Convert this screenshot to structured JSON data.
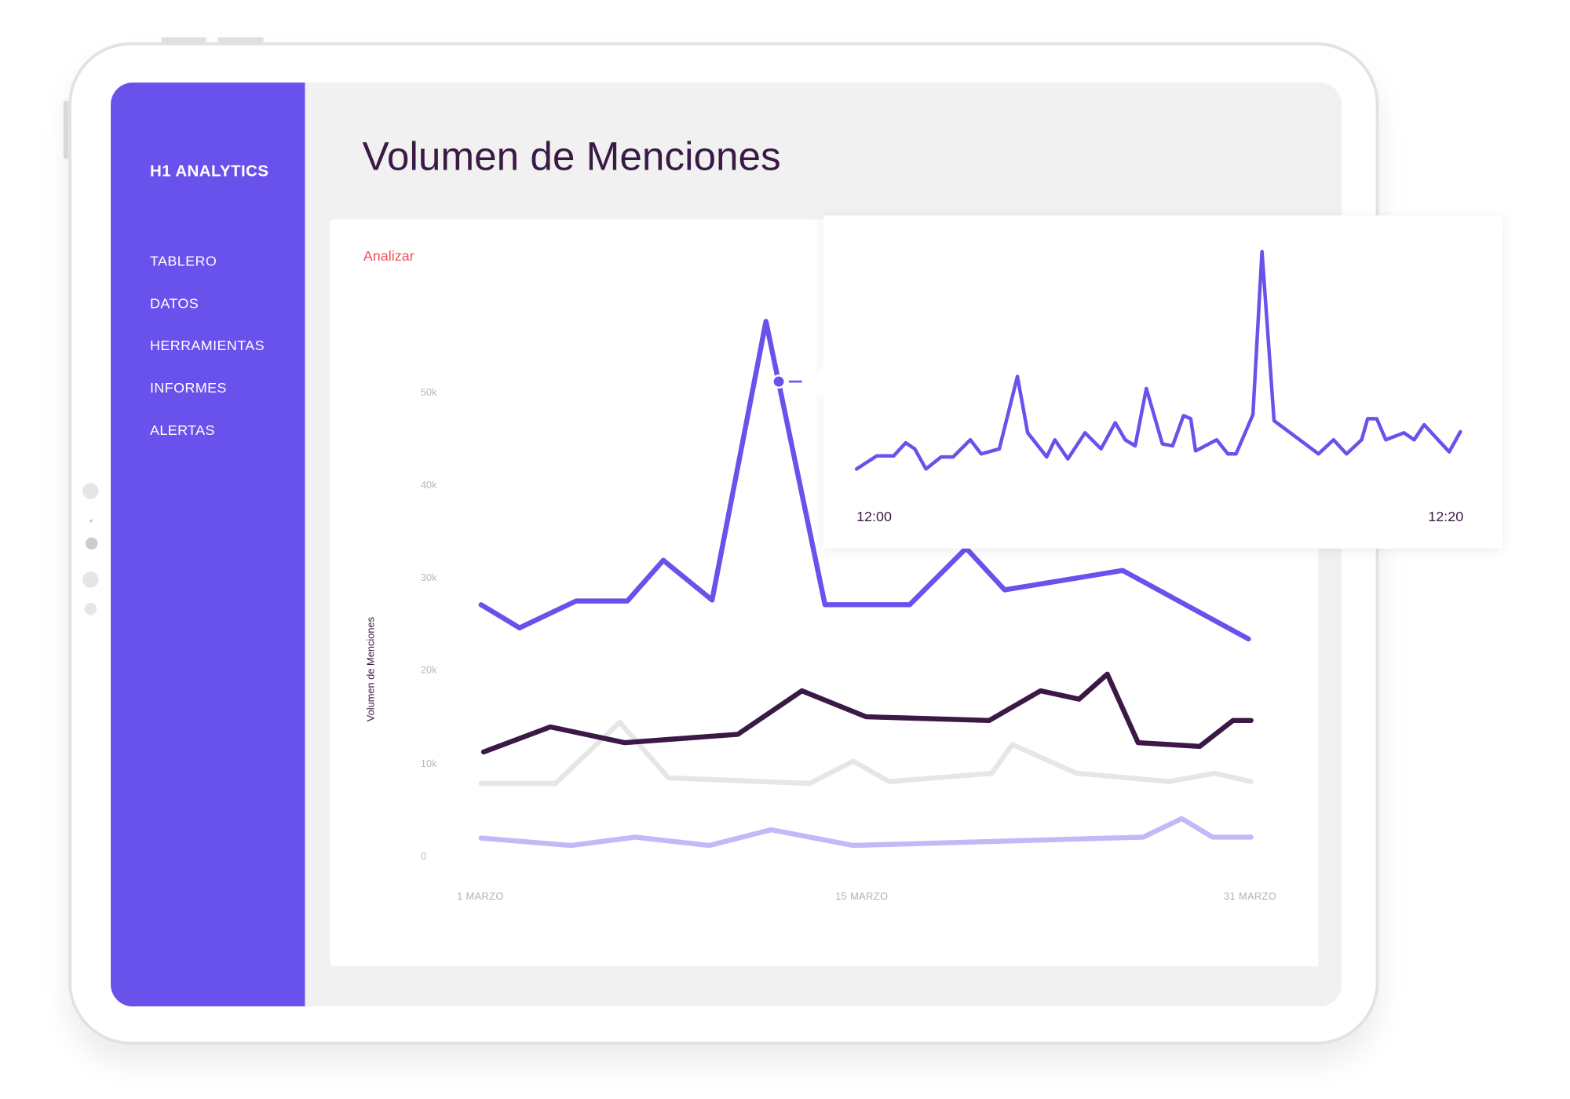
{
  "sidebar": {
    "brand": "H1 ANALYTICS",
    "items": [
      {
        "label": "TABLERO"
      },
      {
        "label": "DATOS"
      },
      {
        "label": "HERRAMIENTAS"
      },
      {
        "label": "INFORMES"
      },
      {
        "label": "ALERTAS"
      }
    ]
  },
  "main": {
    "title": "Volumen de Menciones",
    "analyze_link": "Analizar"
  },
  "colors": {
    "sidebar": "#6952ec",
    "title": "#3a1a45",
    "accent_red": "#f0505a"
  },
  "chart_data": [
    {
      "type": "line",
      "title": "",
      "xlabel": "",
      "ylabel": "Volumen de Menciones",
      "ylim": [
        0,
        50000
      ],
      "y_ticks": [
        "0",
        "10k",
        "20k",
        "30k",
        "40k",
        "50k"
      ],
      "x_ticks": [
        "1 MARZO",
        "15 MARZO",
        "31 MARZO"
      ],
      "xlim_days": [
        1,
        31
      ],
      "grid": false,
      "series": [
        {
          "name": "series-1",
          "color": "#6952ec",
          "x": [
            1,
            2.5,
            4.7,
            6.7,
            8.1,
            10,
            12.1,
            14.4,
            17.7,
            19.9,
            21.4,
            26,
            30.9
          ],
          "values": [
            27.3,
            24.8,
            27.7,
            27.7,
            32.1,
            27.8,
            57.9,
            27.3,
            27.3,
            33.4,
            28.9,
            31,
            23.6
          ]
        },
        {
          "name": "series-2",
          "color": "#3b1846",
          "x": [
            1.1,
            3.7,
            6.6,
            11,
            13.5,
            16,
            20.8,
            22.8,
            24.3,
            25.4,
            26.6,
            29,
            30.3,
            31
          ],
          "values": [
            11.4,
            14.1,
            12.4,
            13.3,
            18,
            15.2,
            14.8,
            18,
            17.1,
            19.8,
            12.4,
            12,
            14.8,
            14.8
          ]
        },
        {
          "name": "series-3",
          "color": "#e6e6e6",
          "x": [
            1,
            3.9,
            6.4,
            8.3,
            13.8,
            15.5,
            16.9,
            20.9,
            21.7,
            24.2,
            27.8,
            29.6,
            31
          ],
          "values": [
            8,
            8,
            14.6,
            8.6,
            8,
            10.4,
            8.2,
            9.1,
            12.2,
            9.1,
            8.2,
            9.1,
            8.2
          ]
        },
        {
          "name": "series-4",
          "color": "#c4b8f7",
          "x": [
            1,
            4.5,
            7,
            9.9,
            12.3,
            15.5,
            26.8,
            28.3,
            29.5,
            31
          ],
          "values": [
            2.1,
            1.3,
            2.2,
            1.3,
            3,
            1.3,
            2.2,
            4.2,
            2.2,
            2.2
          ]
        }
      ],
      "highlight": {
        "day": 12.6,
        "value": 51.4
      }
    },
    {
      "type": "line",
      "title": "",
      "x_ticks": [
        "12:00",
        "12:20"
      ],
      "xlim_minutes": [
        0,
        20
      ],
      "series": [
        {
          "name": "detail",
          "color": "#6952ec",
          "x": [
            0,
            0.67,
            1.23,
            1.63,
            1.93,
            2.3,
            2.8,
            3.2,
            3.77,
            4.13,
            4.73,
            5.33,
            5.67,
            6.3,
            6.57,
            7,
            7.57,
            8.1,
            8.57,
            8.9,
            9.23,
            9.6,
            10.13,
            10.47,
            10.83,
            11.07,
            11.23,
            11.93,
            12.3,
            12.57,
            13.13,
            13.43,
            13.83,
            15.3,
            15.8,
            16.23,
            16.73,
            16.93,
            17.23,
            17.53,
            18.13,
            18.47,
            18.8,
            19.63,
            20
          ],
          "values": [
            1.4,
            2.7,
            2.7,
            4,
            3.4,
            1.4,
            2.6,
            2.6,
            4.3,
            2.9,
            3.4,
            10.6,
            5,
            2.6,
            4.3,
            2.4,
            5,
            3.4,
            6,
            4.3,
            3.7,
            9.4,
            3.9,
            3.7,
            6.7,
            6.4,
            3.2,
            4.3,
            2.9,
            2.9,
            6.8,
            23,
            6.2,
            2.9,
            4.3,
            2.9,
            4.3,
            6.4,
            6.4,
            4.3,
            5,
            4.3,
            5.8,
            3.1,
            5.1
          ]
        }
      ]
    }
  ]
}
